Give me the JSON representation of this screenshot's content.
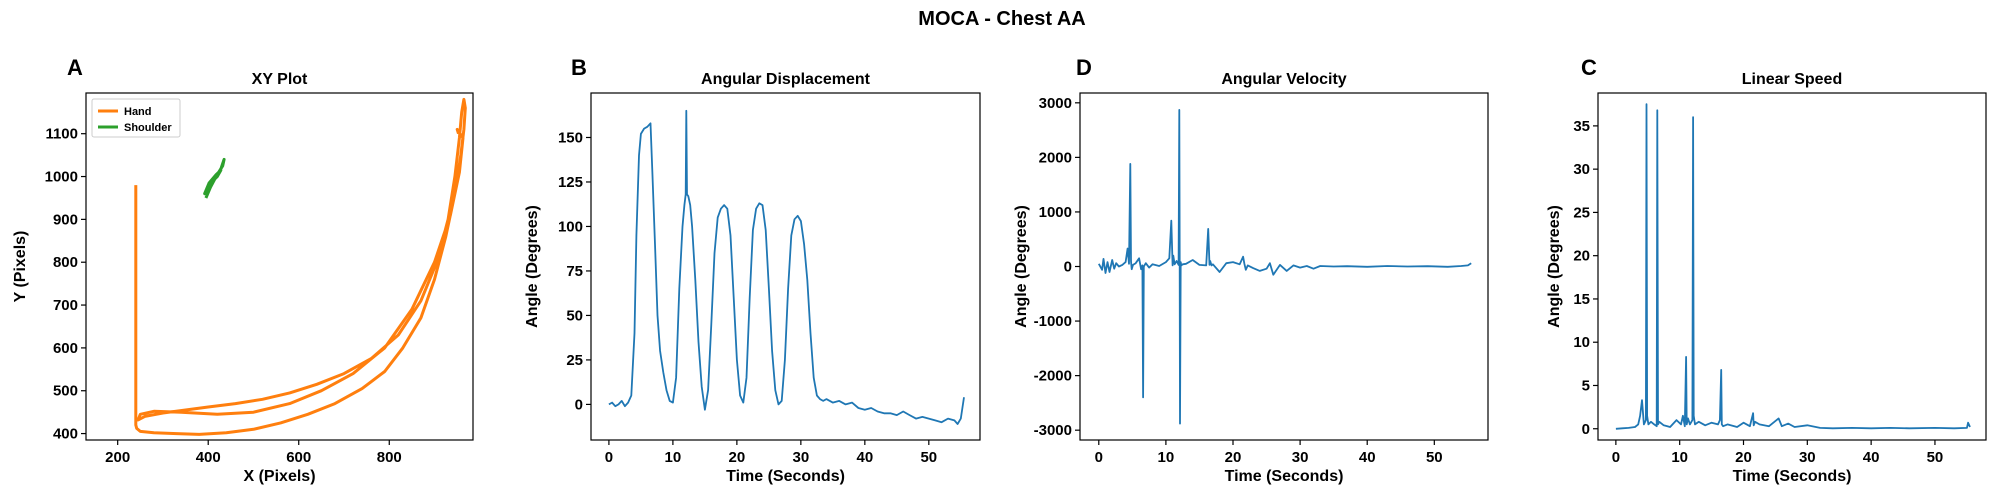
{
  "figure": {
    "title": "MOCA - Chest AA"
  },
  "chart_data": [
    {
      "id": "A",
      "panel_label": "A",
      "type": "line",
      "title": "XY Plot",
      "xlabel": "X (Pixels)",
      "ylabel": "Y (Pixels)",
      "xlim": [
        130,
        985
      ],
      "ylim": [
        385,
        1195
      ],
      "xticks": [
        200,
        400,
        600,
        800
      ],
      "yticks": [
        400,
        500,
        600,
        700,
        800,
        900,
        1000,
        1100
      ],
      "legend": {
        "position": "top-left"
      },
      "series": [
        {
          "name": "Hand",
          "color": "#ff7f0e",
          "x": [
            240,
            240,
            242,
            250,
            280,
            330,
            380,
            440,
            500,
            560,
            620,
            680,
            740,
            790,
            830,
            870,
            900,
            925,
            945,
            958,
            965,
            968,
            965,
            960,
            955,
            945,
            930,
            905,
            870,
            820,
            760,
            700,
            640,
            580,
            520,
            460,
            400,
            350,
            300,
            260,
            245,
            250,
            280,
            340,
            420,
            500,
            580,
            650,
            720,
            790,
            850,
            900,
            935,
            955,
            963,
            950,
            953
          ],
          "y": [
            980,
            420,
            412,
            405,
            402,
            400,
            398,
            402,
            410,
            425,
            445,
            470,
            505,
            545,
            600,
            670,
            760,
            860,
            960,
            1050,
            1110,
            1160,
            1180,
            1150,
            1090,
            1000,
            900,
            800,
            710,
            630,
            575,
            540,
            515,
            495,
            480,
            470,
            462,
            455,
            448,
            440,
            432,
            445,
            452,
            450,
            445,
            450,
            470,
            500,
            540,
            600,
            690,
            800,
            910,
            1010,
            1090,
            1110,
            1100
          ]
        },
        {
          "name": "Shoulder",
          "color": "#2ca02c",
          "x": [
            395,
            405,
            415,
            428,
            435,
            432,
            420,
            410,
            398,
            392,
            402,
            418,
            428,
            420,
            405,
            397
          ],
          "y": [
            950,
            975,
            995,
            1018,
            1040,
            1025,
            1005,
            990,
            970,
            960,
            985,
            1005,
            1015,
            1000,
            985,
            965
          ]
        }
      ]
    },
    {
      "id": "B",
      "panel_label": "B",
      "type": "line",
      "title": "Angular Displacement",
      "xlabel": "Time (Seconds)",
      "ylabel": "Angle (Degrees)",
      "xlim": [
        -2.8,
        58
      ],
      "ylim": [
        -20,
        175
      ],
      "xticks": [
        0,
        10,
        20,
        30,
        40,
        50
      ],
      "yticks": [
        0,
        25,
        50,
        75,
        100,
        125,
        150
      ],
      "series": [
        {
          "name": "",
          "color": "#1f77b4",
          "x": [
            0,
            0.5,
            1,
            1.5,
            2,
            2.5,
            3,
            3.5,
            4,
            4.3,
            4.7,
            5,
            5.5,
            6,
            6.5,
            6.8,
            7.2,
            7.6,
            8,
            8.5,
            9,
            9.5,
            10,
            10.5,
            11,
            11.5,
            11.8,
            12,
            12.1,
            12.2,
            12.4,
            12.7,
            13,
            13.5,
            14,
            14.5,
            15,
            15.5,
            16,
            16.5,
            17,
            17.5,
            18,
            18.5,
            19,
            19.5,
            20,
            20.5,
            21,
            21.5,
            22,
            22.5,
            23,
            23.5,
            24,
            24.5,
            25,
            25.5,
            26,
            26.5,
            27,
            27.5,
            28,
            28.5,
            29,
            29.5,
            30,
            30.5,
            31,
            31.5,
            32,
            32.5,
            33,
            33.5,
            34,
            35,
            36,
            37,
            38,
            39,
            40,
            41,
            42,
            43,
            44,
            45,
            46,
            47,
            48,
            49,
            50,
            51,
            52,
            53,
            54,
            54.5,
            55,
            55.5
          ],
          "y": [
            0,
            1,
            -1,
            0,
            2,
            -1,
            1,
            5,
            40,
            95,
            140,
            152,
            155,
            156,
            158,
            130,
            90,
            50,
            30,
            18,
            8,
            2,
            1,
            15,
            65,
            100,
            112,
            118,
            165,
            118,
            117,
            112,
            100,
            70,
            35,
            10,
            -3,
            8,
            45,
            85,
            105,
            110,
            112,
            110,
            95,
            60,
            25,
            5,
            1,
            15,
            60,
            98,
            110,
            113,
            112,
            98,
            65,
            30,
            8,
            0,
            2,
            25,
            65,
            95,
            104,
            106,
            103,
            90,
            70,
            40,
            15,
            5,
            3,
            2,
            3,
            1,
            2,
            0,
            1,
            -2,
            -3,
            -2,
            -4,
            -5,
            -5,
            -6,
            -4,
            -6,
            -8,
            -7,
            -8,
            -9,
            -10,
            -8,
            -9,
            -11,
            -8,
            4
          ]
        }
      ]
    },
    {
      "id": "D",
      "panel_label": "D",
      "type": "line",
      "title": "Angular Velocity",
      "xlabel": "Time (Seconds)",
      "ylabel": "Angle (Degrees)",
      "xlim": [
        -2.8,
        58
      ],
      "ylim": [
        -3180,
        3180
      ],
      "xticks": [
        0,
        10,
        20,
        30,
        40,
        50
      ],
      "yticks": [
        -3000,
        -2000,
        -1000,
        0,
        1000,
        2000,
        3000
      ],
      "series": [
        {
          "name": "",
          "color": "#1f77b4",
          "x": [
            0,
            0.5,
            0.7,
            1,
            1.3,
            1.6,
            2,
            2.3,
            2.6,
            3,
            3.5,
            4,
            4.3,
            4.5,
            4.7,
            4.8,
            4.9,
            5.1,
            5.5,
            6,
            6.3,
            6.5,
            6.6,
            6.7,
            7,
            7.5,
            8,
            9,
            10,
            10.5,
            10.8,
            11,
            11.1,
            11.3,
            11.6,
            11.9,
            12,
            12.05,
            12.1,
            12.2,
            12.3,
            12.5,
            13,
            14,
            15,
            16,
            16.3,
            16.5,
            16.6,
            16.8,
            17,
            18,
            19,
            20,
            21,
            21.5,
            21.7,
            21.9,
            22.2,
            23,
            24,
            25,
            25.5,
            26,
            27,
            28,
            29,
            30,
            31,
            32,
            33,
            35,
            37,
            40,
            43,
            46,
            49,
            52,
            54,
            55,
            55.5
          ],
          "y": [
            50,
            -60,
            140,
            -120,
            80,
            -100,
            120,
            -40,
            60,
            0,
            30,
            80,
            330,
            50,
            1880,
            100,
            -50,
            30,
            60,
            150,
            -50,
            20,
            -2400,
            0,
            60,
            -20,
            40,
            10,
            80,
            150,
            840,
            20,
            200,
            40,
            100,
            30,
            2870,
            10,
            -2880,
            80,
            20,
            40,
            50,
            120,
            30,
            20,
            690,
            30,
            100,
            20,
            40,
            -100,
            60,
            80,
            40,
            180,
            50,
            -60,
            20,
            -30,
            -80,
            -40,
            60,
            -150,
            30,
            -80,
            20,
            -20,
            10,
            -40,
            10,
            0,
            5,
            -5,
            10,
            0,
            5,
            -5,
            10,
            20,
            60
          ]
        }
      ]
    },
    {
      "id": "C",
      "panel_label": "C",
      "type": "line",
      "title": "Linear Speed",
      "xlabel": "Time (Seconds)",
      "ylabel": "Angle (Degrees)",
      "xlim": [
        -2.8,
        58
      ],
      "ylim": [
        -1.3,
        38.8
      ],
      "xticks": [
        0,
        10,
        20,
        30,
        40,
        50
      ],
      "yticks": [
        0,
        5,
        10,
        15,
        20,
        25,
        30,
        35
      ],
      "series": [
        {
          "name": "",
          "color": "#1f77b4",
          "x": [
            0,
            1,
            2,
            3,
            3.5,
            3.8,
            4.1,
            4.4,
            4.7,
            4.8,
            4.9,
            5.1,
            5.5,
            6,
            6.4,
            6.5,
            6.6,
            6.8,
            7.5,
            8.5,
            9.5,
            10.2,
            10.5,
            10.8,
            11,
            11.1,
            11.3,
            11.6,
            12,
            12.1,
            12.2,
            12.4,
            13,
            14,
            15,
            16,
            16.3,
            16.5,
            16.6,
            16.8,
            17.5,
            19,
            20,
            21,
            21.5,
            21.6,
            21.8,
            22.5,
            24,
            25.5,
            26,
            27,
            28,
            30,
            32,
            34,
            37,
            40,
            43,
            46,
            50,
            53,
            55,
            55.2,
            55.5
          ],
          "y": [
            0,
            0.05,
            0.1,
            0.2,
            0.5,
            1.5,
            3.3,
            0.5,
            1,
            37.5,
            1.5,
            0.5,
            0.8,
            0.5,
            0.3,
            36.8,
            0.5,
            0.8,
            0.4,
            0.2,
            1,
            0.5,
            1.5,
            0.3,
            8.3,
            0.5,
            1.2,
            0.5,
            1,
            36,
            1.5,
            0.5,
            0.8,
            0.4,
            0.7,
            0.5,
            1,
            6.8,
            0.5,
            0.3,
            0.5,
            0.2,
            0.7,
            0.3,
            1.8,
            0.4,
            0.8,
            0.5,
            0.3,
            1.2,
            0.3,
            0.6,
            0.2,
            0.4,
            0.1,
            0.05,
            0.1,
            0.05,
            0.1,
            0.05,
            0.1,
            0.05,
            0.1,
            0.7,
            0.2
          ]
        }
      ]
    }
  ]
}
